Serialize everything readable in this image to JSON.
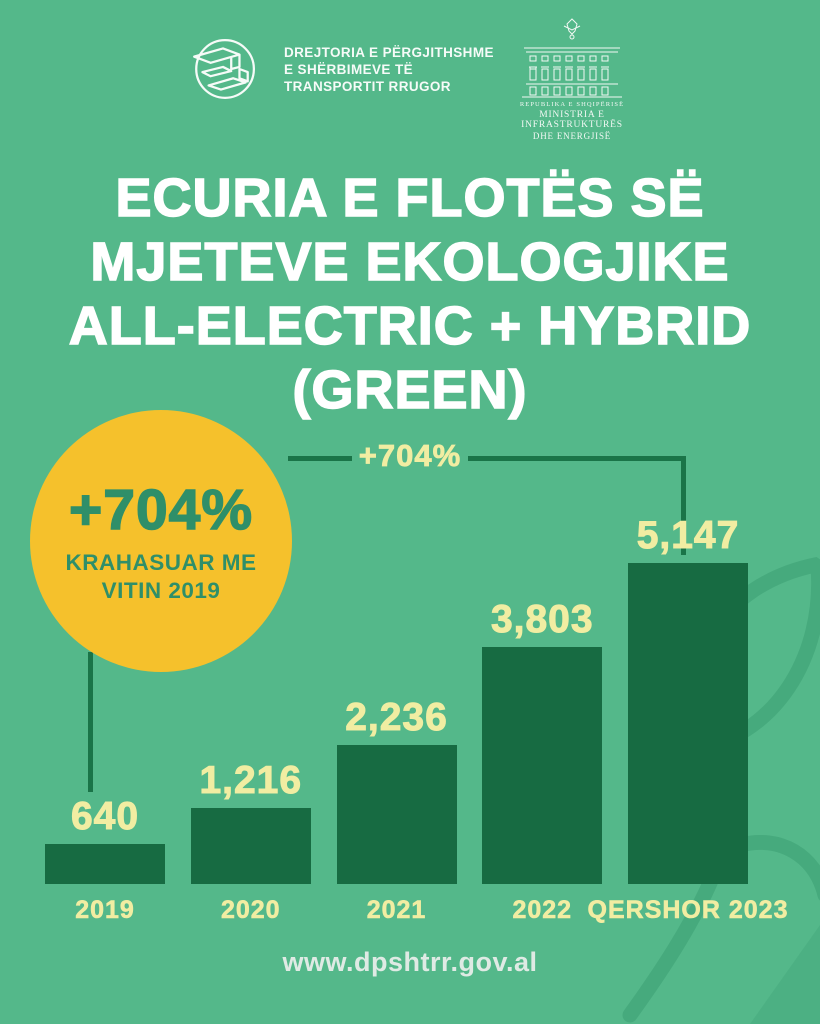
{
  "page": {
    "background_color": "#54B88A",
    "bar_color": "#176B42",
    "accent_yellow": "#F5C12C",
    "cream_text_color": "#F1EDA2",
    "line_color": "#1A7448",
    "badge_text_color": "#2F8F69"
  },
  "header": {
    "dpshtrr_logo_lines": {
      "0": "DREJTORIA E PËRGJITHSHME",
      "1": "E SHËRBIMEVE TË",
      "2": "TRANSPORTIT RRUGOR"
    },
    "ministry_logo_lines": {
      "0": "REPUBLIKA E SHQIPËRISË",
      "1": "MINISTRIA E INFRASTRUKTURËS",
      "2": "DHE ENERGJISË"
    }
  },
  "title": {
    "line1": "ECURIA E FLOTËS SË",
    "line2": "MJETEVE EKOLOGJIKE",
    "line3": "ALL-ELECTRIC + HYBRID",
    "line4": "(GREEN)"
  },
  "highlight_badge": {
    "percent": "+704%",
    "caption_line1": "KRAHASUAR ME",
    "caption_line2": "VITIN 2019"
  },
  "annotation": {
    "label": "+704%"
  },
  "chart_data": {
    "type": "bar",
    "title": "ECURIA E FLOTËS SË MJETEVE EKOLOGJIKE ALL-ELECTRIC + HYBRID (GREEN)",
    "categories": [
      "2019",
      "2020",
      "2021",
      "2022",
      "QERSHOR 2023"
    ],
    "values": [
      640,
      1216,
      2236,
      3803,
      5147
    ],
    "value_labels": [
      "640",
      "1,216",
      "2,236",
      "3,803",
      "5,147"
    ],
    "annotation": "+704% KRAHASUAR ME VITIN 2019",
    "xlabel": "",
    "ylabel": "",
    "ylim": [
      0,
      5500
    ],
    "grid": false,
    "legend": false
  },
  "footer": {
    "url": "www.dpshtrr.gov.al"
  }
}
